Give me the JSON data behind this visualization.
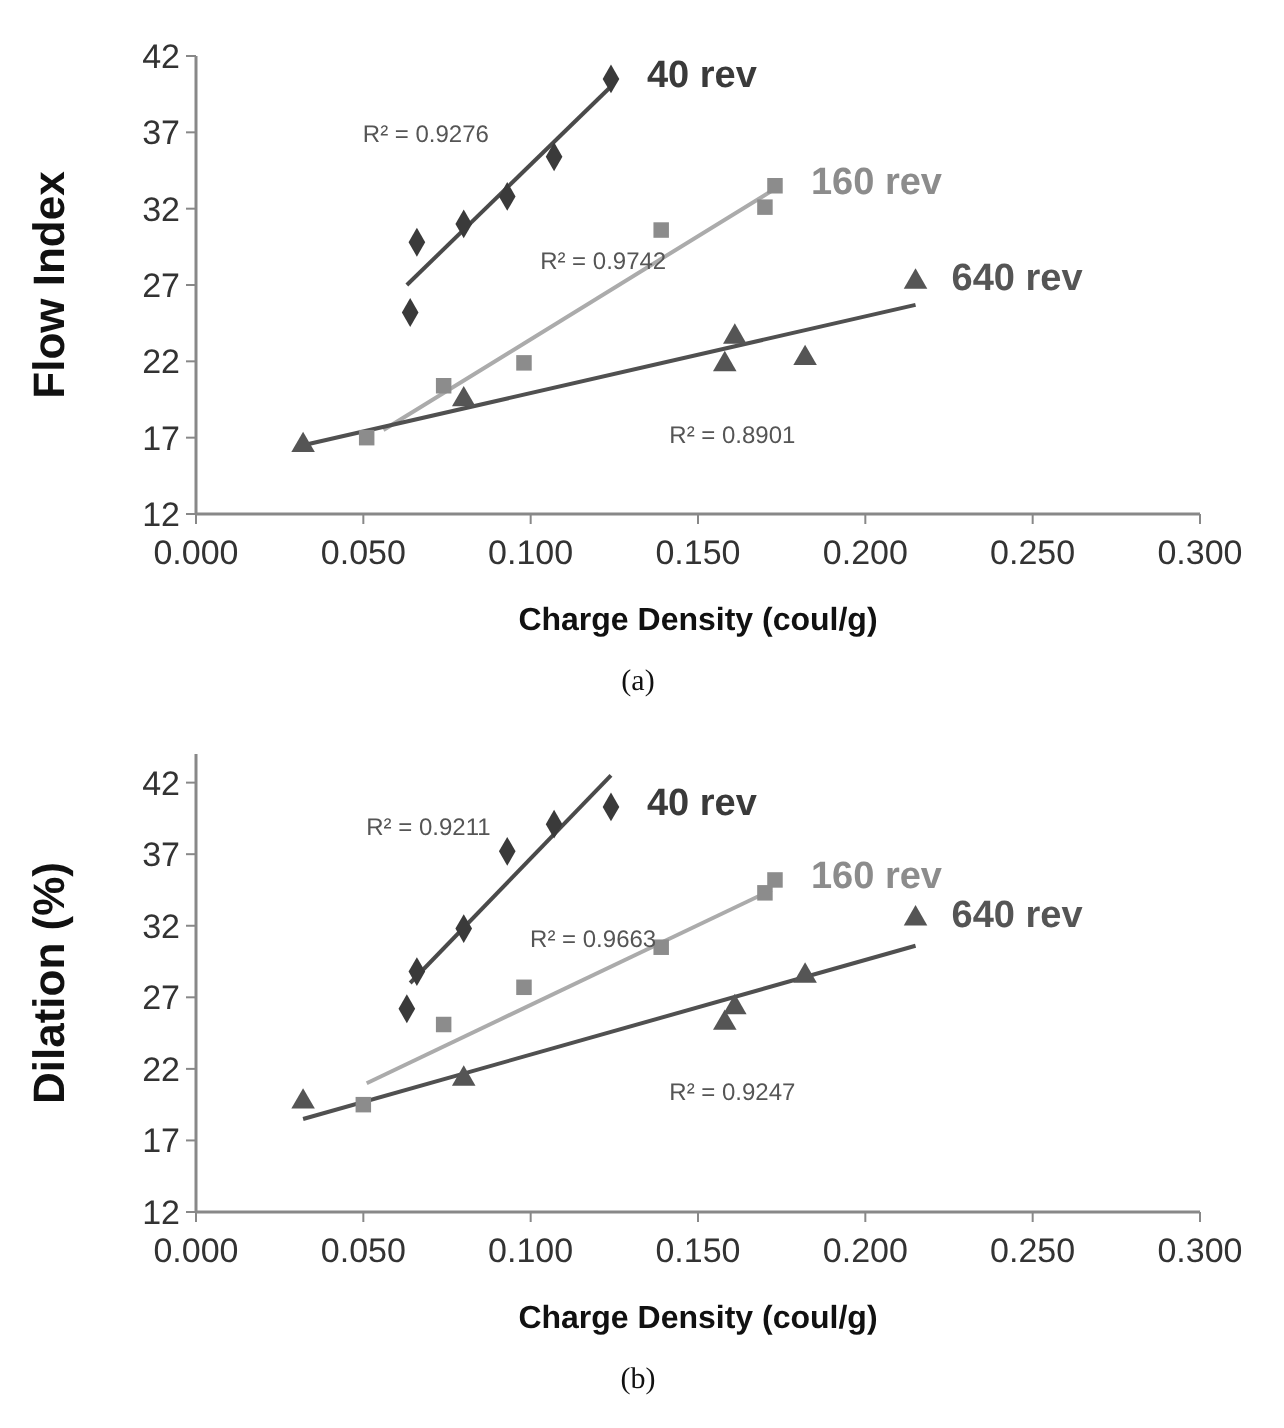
{
  "chart_data": [
    {
      "type": "scatter",
      "xlabel": "Charge Density (coul/g)",
      "ylabel": "Flow Index",
      "xlim": [
        0,
        0.3
      ],
      "ylim": [
        12,
        42
      ],
      "xticks": [
        {
          "value": 0,
          "label": "0.000"
        },
        {
          "value": 0.05,
          "label": "0.050"
        },
        {
          "value": 0.1,
          "label": "0.100"
        },
        {
          "value": 0.15,
          "label": "0.150"
        },
        {
          "value": 0.2,
          "label": "0.200"
        },
        {
          "value": 0.25,
          "label": "0.250"
        },
        {
          "value": 0.3,
          "label": "0.300"
        }
      ],
      "yticks": [
        12,
        17,
        22,
        27,
        32,
        37,
        42
      ],
      "grid": false,
      "legend": false,
      "series": [
        {
          "name": "40 rev",
          "type": "scatter",
          "marker": "diamond",
          "color": "#3a3a3a",
          "x": [
            0.064,
            0.066,
            0.08,
            0.093,
            0.107,
            0.124
          ],
          "values": [
            25.2,
            29.8,
            31.0,
            32.8,
            35.4,
            40.5
          ]
        },
        {
          "name": "160 rev",
          "type": "scatter",
          "marker": "square",
          "color": "#8c8c8c",
          "x": [
            0.051,
            0.074,
            0.098,
            0.139,
            0.17,
            0.173
          ],
          "values": [
            17.0,
            20.4,
            21.9,
            30.6,
            32.1,
            33.5
          ]
        },
        {
          "name": "640 rev",
          "type": "scatter",
          "marker": "triangle",
          "color": "#555555",
          "x": [
            0.032,
            0.08,
            0.158,
            0.161,
            0.182,
            0.215
          ],
          "values": [
            16.5,
            19.5,
            21.8,
            23.6,
            22.2,
            27.2
          ]
        },
        {
          "type": "line",
          "marker": "none",
          "color": "#4a4a4a",
          "x": [
            0.063,
            0.124
          ],
          "values": [
            27.0,
            40.0
          ]
        },
        {
          "type": "line",
          "marker": "none",
          "color": "#ababab",
          "x": [
            0.056,
            0.173
          ],
          "values": [
            17.5,
            33.3
          ]
        },
        {
          "type": "line",
          "marker": "none",
          "color": "#505050",
          "x": [
            0.032,
            0.215
          ],
          "values": [
            16.5,
            25.7
          ]
        }
      ],
      "annotations": [
        "R² = 0.9276",
        "R² = 0.9742",
        "R² = 0.8901",
        "(a)"
      ]
    },
    {
      "type": "scatter",
      "xlabel": "Charge Density (coul/g)",
      "ylabel": "Dilation (%)",
      "xlim": [
        0,
        0.3
      ],
      "ylim": [
        12,
        44
      ],
      "xticks": [
        {
          "value": 0,
          "label": "0.000"
        },
        {
          "value": 0.05,
          "label": "0.050"
        },
        {
          "value": 0.1,
          "label": "0.100"
        },
        {
          "value": 0.15,
          "label": "0.150"
        },
        {
          "value": 0.2,
          "label": "0.200"
        },
        {
          "value": 0.25,
          "label": "0.250"
        },
        {
          "value": 0.3,
          "label": "0.300"
        }
      ],
      "yticks": [
        12,
        17,
        22,
        27,
        32,
        37,
        42
      ],
      "grid": false,
      "legend": false,
      "series": [
        {
          "name": "40 rev",
          "type": "scatter",
          "marker": "diamond",
          "color": "#3a3a3a",
          "x": [
            0.063,
            0.066,
            0.08,
            0.093,
            0.107,
            0.124
          ],
          "values": [
            26.2,
            28.8,
            31.8,
            37.2,
            39.1,
            40.3
          ]
        },
        {
          "name": "160 rev",
          "type": "scatter",
          "marker": "square",
          "color": "#8c8c8c",
          "x": [
            0.05,
            0.074,
            0.098,
            0.139,
            0.17,
            0.173
          ],
          "values": [
            19.5,
            25.1,
            27.7,
            30.5,
            34.3,
            35.2
          ]
        },
        {
          "name": "640 rev",
          "type": "scatter",
          "marker": "triangle",
          "color": "#555555",
          "x": [
            0.032,
            0.08,
            0.158,
            0.161,
            0.182,
            0.215
          ],
          "values": [
            19.7,
            21.3,
            25.2,
            26.3,
            28.5,
            32.5
          ]
        },
        {
          "type": "line",
          "marker": "none",
          "color": "#4a4a4a",
          "x": [
            0.064,
            0.124
          ],
          "values": [
            28.0,
            42.5
          ]
        },
        {
          "type": "line",
          "marker": "none",
          "color": "#ababab",
          "x": [
            0.051,
            0.172
          ],
          "values": [
            21.0,
            34.5
          ]
        },
        {
          "type": "line",
          "marker": "none",
          "color": "#505050",
          "x": [
            0.032,
            0.215
          ],
          "values": [
            18.5,
            30.6
          ]
        }
      ],
      "annotations": [
        "R² = 0.9211",
        "R² = 0.9663",
        "R² = 0.9247",
        "(b)"
      ]
    }
  ]
}
